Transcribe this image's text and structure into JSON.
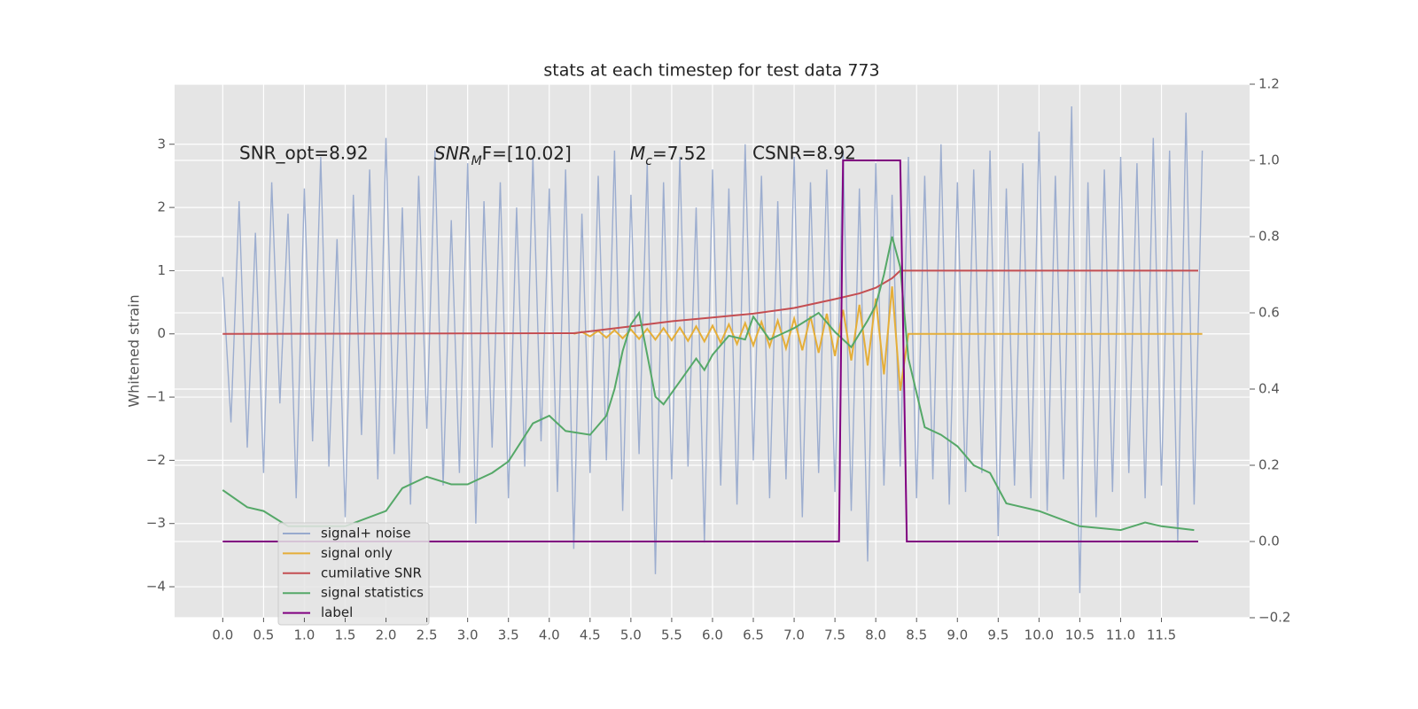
{
  "chart_data": {
    "type": "line",
    "title": "stats at each timestep for test data 773",
    "ylabel": "Whitened strain",
    "xlim": [
      -0.59,
      12.58
    ],
    "ylim": [
      -4.49,
      3.95
    ],
    "y2lim": [
      -0.2,
      1.2
    ],
    "grid": true,
    "legend": "lower left",
    "xticks": [
      {
        "value": 0,
        "label": "0.0"
      },
      {
        "value": 0.5,
        "label": "0.5"
      },
      {
        "value": 1,
        "label": "1.0"
      },
      {
        "value": 1.5,
        "label": "1.5"
      },
      {
        "value": 2,
        "label": "2.0"
      },
      {
        "value": 2.5,
        "label": "2.5"
      },
      {
        "value": 3,
        "label": "3.0"
      },
      {
        "value": 3.5,
        "label": "3.5"
      },
      {
        "value": 4,
        "label": "4.0"
      },
      {
        "value": 4.5,
        "label": "4.5"
      },
      {
        "value": 5,
        "label": "5.0"
      },
      {
        "value": 5.5,
        "label": "5.5"
      },
      {
        "value": 6,
        "label": "6.0"
      },
      {
        "value": 6.5,
        "label": "6.5"
      },
      {
        "value": 7,
        "label": "7.0"
      },
      {
        "value": 7.5,
        "label": "7.5"
      },
      {
        "value": 8,
        "label": "8.0"
      },
      {
        "value": 8.5,
        "label": "8.5"
      },
      {
        "value": 9,
        "label": "9.0"
      },
      {
        "value": 9.5,
        "label": "9.5"
      },
      {
        "value": 10,
        "label": "10.0"
      },
      {
        "value": 10.5,
        "label": "10.5"
      },
      {
        "value": 11,
        "label": "11.0"
      },
      {
        "value": 11.5,
        "label": "11.5"
      }
    ],
    "yticks": [
      {
        "value": -4,
        "label": "−4"
      },
      {
        "value": -3,
        "label": "−3"
      },
      {
        "value": -2,
        "label": "−2"
      },
      {
        "value": -1,
        "label": "−1"
      },
      0,
      1,
      2,
      3
    ],
    "y2ticks": [
      {
        "value": -0.2,
        "label": "−0.2"
      },
      {
        "value": 0,
        "label": "0.0"
      },
      {
        "value": 0.2,
        "label": "0.2"
      },
      {
        "value": 0.4,
        "label": "0.4"
      },
      {
        "value": 0.6,
        "label": "0.6"
      },
      {
        "value": 0.8,
        "label": "0.8"
      },
      {
        "value": 1,
        "label": "1.0"
      },
      {
        "value": 1.2,
        "label": "1.2"
      }
    ],
    "annotations": [
      {
        "text": "SNR_opt=8.92"
      },
      {
        "text": "SNR",
        "sub": "M",
        "rest": "F=[10.02]"
      },
      {
        "text": "M",
        "sub": "c",
        "rest": "=7.52"
      },
      {
        "text": "CSNR=8.92"
      }
    ],
    "series": [
      {
        "name": "signal+ noise",
        "color": "#98aacd",
        "x": [
          0,
          0.1,
          0.2,
          0.3,
          0.4,
          0.5,
          0.6,
          0.7,
          0.8,
          0.9,
          1,
          1.1,
          1.2,
          1.3,
          1.4,
          1.5,
          1.6,
          1.7,
          1.8,
          1.9,
          2,
          2.1,
          2.2,
          2.3,
          2.4,
          2.5,
          2.6,
          2.7,
          2.8,
          2.9,
          3,
          3.1,
          3.2,
          3.3,
          3.4,
          3.5,
          3.6,
          3.7,
          3.8,
          3.9,
          4,
          4.1,
          4.2,
          4.3,
          4.4,
          4.5,
          4.6,
          4.7,
          4.8,
          4.9,
          5,
          5.1,
          5.2,
          5.3,
          5.4,
          5.5,
          5.6,
          5.7,
          5.8,
          5.9,
          6,
          6.1,
          6.2,
          6.3,
          6.4,
          6.5,
          6.6,
          6.7,
          6.8,
          6.9,
          7,
          7.1,
          7.2,
          7.3,
          7.4,
          7.5,
          7.6,
          7.7,
          7.8,
          7.9,
          8,
          8.1,
          8.2,
          8.3,
          8.4,
          8.5,
          8.6,
          8.7,
          8.8,
          8.9,
          9,
          9.1,
          9.2,
          9.3,
          9.4,
          9.5,
          9.6,
          9.7,
          9.8,
          9.9,
          10,
          10.1,
          10.2,
          10.3,
          10.4,
          10.5,
          10.6,
          10.7,
          10.8,
          10.9,
          11,
          11.1,
          11.2,
          11.3,
          11.4,
          11.5,
          11.6,
          11.7,
          11.8,
          11.9,
          12
        ],
        "values": [
          0.9,
          -1.4,
          2.1,
          -1.8,
          1.6,
          -2.2,
          2.4,
          -1.1,
          1.9,
          -2.6,
          2.3,
          -1.7,
          2.8,
          -2.1,
          1.5,
          -2.9,
          2.2,
          -1.6,
          2.6,
          -2.3,
          3.1,
          -1.9,
          2.0,
          -2.7,
          2.5,
          -1.5,
          2.9,
          -2.4,
          1.8,
          -2.2,
          2.7,
          -3.0,
          2.1,
          -1.8,
          2.4,
          -2.6,
          2.0,
          -2.1,
          2.8,
          -1.7,
          2.3,
          -2.5,
          2.6,
          -3.4,
          1.9,
          -2.2,
          2.5,
          -2.0,
          2.9,
          -2.8,
          2.2,
          -1.9,
          2.7,
          -3.8,
          2.4,
          -2.3,
          2.8,
          -2.1,
          2.0,
          -3.3,
          2.6,
          -2.4,
          2.3,
          -2.7,
          3.0,
          -2.0,
          2.5,
          -2.6,
          2.1,
          -2.3,
          2.8,
          -2.9,
          2.4,
          -2.2,
          2.6,
          -2.5,
          2.9,
          -2.8,
          2.3,
          -3.6,
          2.7,
          -2.4,
          2.2,
          -2.1,
          2.8,
          -2.6,
          2.5,
          -2.3,
          3.0,
          -2.7,
          2.4,
          -2.5,
          2.6,
          -2.2,
          2.9,
          -3.2,
          2.3,
          -2.4,
          2.7,
          -2.6,
          3.2,
          -2.8,
          2.5,
          -2.3,
          3.6,
          -4.1,
          2.4,
          -2.9,
          2.6,
          -2.5,
          2.8,
          -2.2,
          2.7,
          -2.6,
          3.1,
          -2.4,
          2.9,
          -3.3,
          3.5,
          -2.7,
          2.9
        ]
      },
      {
        "name": "signal only",
        "color": "#e5ae38",
        "x": [
          4.3,
          4.4,
          4.5,
          4.6,
          4.7,
          4.8,
          4.9,
          5,
          5.1,
          5.2,
          5.3,
          5.4,
          5.5,
          5.6,
          5.7,
          5.8,
          5.9,
          6,
          6.1,
          6.2,
          6.3,
          6.4,
          6.5,
          6.6,
          6.7,
          6.8,
          6.9,
          7,
          7.1,
          7.2,
          7.3,
          7.4,
          7.5,
          7.6,
          7.7,
          7.8,
          7.9,
          8,
          8.1,
          8.2,
          8.3,
          8.4,
          8.5,
          12
        ],
        "values": [
          0,
          0.03,
          -0.04,
          0.05,
          -0.06,
          0.06,
          -0.07,
          0.07,
          -0.08,
          0.08,
          -0.09,
          0.09,
          -0.1,
          0.1,
          -0.11,
          0.12,
          -0.12,
          0.13,
          -0.14,
          0.15,
          -0.16,
          0.17,
          -0.18,
          0.19,
          -0.2,
          0.21,
          -0.23,
          0.24,
          -0.26,
          0.28,
          -0.3,
          0.32,
          -0.35,
          0.38,
          -0.42,
          0.46,
          -0.5,
          0.56,
          -0.64,
          0.75,
          -0.9,
          0,
          0,
          0
        ]
      },
      {
        "name": "cumilative SNR",
        "color": "#c44e52",
        "x": [
          0,
          4.3,
          5,
          5.5,
          6,
          6.5,
          7,
          7.5,
          7.8,
          8,
          8.2,
          8.3,
          11.95
        ],
        "values": [
          0,
          0.01,
          0.12,
          0.2,
          0.26,
          0.32,
          0.41,
          0.55,
          0.64,
          0.73,
          0.88,
          1,
          1
        ]
      },
      {
        "name": "signal statistics",
        "color": "#55a868",
        "axis": "y2",
        "x": [
          0,
          0.3,
          0.5,
          0.8,
          1,
          1.5,
          2,
          2.2,
          2.5,
          2.8,
          3,
          3.3,
          3.5,
          3.8,
          4,
          4.2,
          4.5,
          4.7,
          4.8,
          4.9,
          5,
          5.1,
          5.2,
          5.3,
          5.4,
          5.6,
          5.8,
          5.9,
          6,
          6.2,
          6.4,
          6.5,
          6.7,
          7,
          7.3,
          7.5,
          7.7,
          7.9,
          8,
          8.1,
          8.2,
          8.3,
          8.4,
          8.6,
          8.8,
          9,
          9.2,
          9.4,
          9.6,
          10,
          10.5,
          11,
          11.3,
          11.5,
          11.9
        ],
        "values": [
          0.135,
          0.09,
          0.08,
          0.04,
          0.04,
          0.04,
          0.08,
          0.14,
          0.17,
          0.15,
          0.15,
          0.18,
          0.21,
          0.31,
          0.33,
          0.29,
          0.28,
          0.33,
          0.4,
          0.5,
          0.57,
          0.6,
          0.49,
          0.38,
          0.36,
          0.42,
          0.48,
          0.45,
          0.49,
          0.54,
          0.53,
          0.59,
          0.53,
          0.56,
          0.6,
          0.55,
          0.51,
          0.58,
          0.62,
          0.7,
          0.8,
          0.72,
          0.48,
          0.3,
          0.28,
          0.25,
          0.2,
          0.18,
          0.1,
          0.08,
          0.04,
          0.03,
          0.05,
          0.04,
          0.03
        ]
      },
      {
        "name": "label",
        "color": "#800080",
        "axis": "y2",
        "x": [
          0,
          7.55,
          7.6,
          8.3,
          8.38,
          11.95
        ],
        "values": [
          0,
          0,
          1,
          1,
          0,
          0
        ]
      }
    ]
  }
}
